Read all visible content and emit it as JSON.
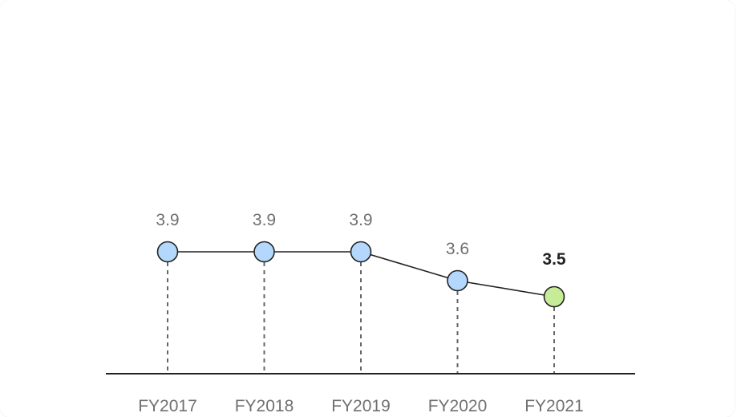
{
  "chart_data": {
    "type": "line",
    "categories": [
      "FY2017",
      "FY2018",
      "FY2019",
      "FY2020",
      "FY2021"
    ],
    "values": [
      3.9,
      3.9,
      3.9,
      3.6,
      3.5
    ],
    "value_labels": [
      "3.9",
      "3.9",
      "3.9",
      "3.6",
      "3.5"
    ],
    "highlight_index": 4,
    "title": "",
    "xlabel": "",
    "ylabel": "",
    "grid": false,
    "colors": {
      "point": "#b4d8fd",
      "highlight_point": "#c6ec98",
      "line": "#222222",
      "axis": "#222222",
      "drop_line": "#666666",
      "label": "#707070",
      "highlight_label": "#222222"
    }
  }
}
